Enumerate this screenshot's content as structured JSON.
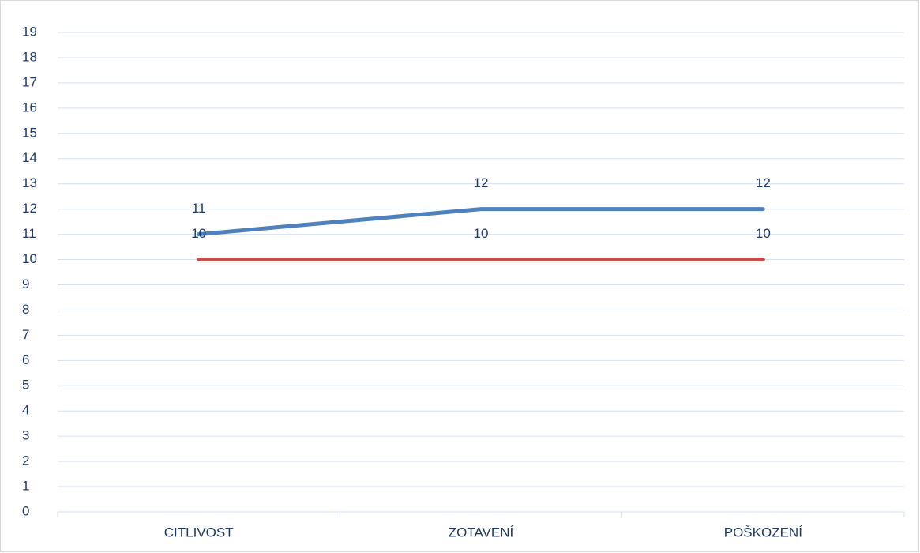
{
  "chart_data": {
    "type": "line",
    "categories": [
      "CITLIVOST",
      "ZOTAVENÍ",
      "POŠKOZENÍ"
    ],
    "series": [
      {
        "color": "#4f81bd",
        "values": [
          11,
          12,
          12
        ]
      },
      {
        "color": "#c0504d",
        "values": [
          10,
          10,
          10
        ]
      }
    ],
    "ylim": [
      0,
      19
    ],
    "yticks": [
      0,
      1,
      2,
      3,
      4,
      5,
      6,
      7,
      8,
      9,
      10,
      11,
      12,
      13,
      14,
      15,
      16,
      17,
      18,
      19
    ],
    "grid": true,
    "data_labels": true
  }
}
